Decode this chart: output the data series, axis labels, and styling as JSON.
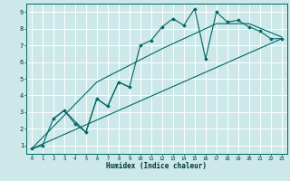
{
  "title": "",
  "xlabel": "Humidex (Indice chaleur)",
  "ylabel": "",
  "bg_color": "#cce8e8",
  "grid_color": "#ffffff",
  "line_color": "#006666",
  "marker_color": "#006666",
  "xlim": [
    -0.5,
    23.5
  ],
  "ylim": [
    0.5,
    9.5
  ],
  "xticks": [
    0,
    1,
    2,
    3,
    4,
    5,
    6,
    7,
    8,
    9,
    10,
    11,
    12,
    13,
    14,
    15,
    16,
    17,
    18,
    19,
    20,
    21,
    22,
    23
  ],
  "yticks": [
    1,
    2,
    3,
    4,
    5,
    6,
    7,
    8,
    9
  ],
  "main_line": [
    [
      0,
      0.8
    ],
    [
      1,
      1.0
    ],
    [
      2,
      2.6
    ],
    [
      3,
      3.1
    ],
    [
      4,
      2.3
    ],
    [
      5,
      1.8
    ],
    [
      6,
      3.8
    ],
    [
      7,
      3.35
    ],
    [
      8,
      4.8
    ],
    [
      9,
      4.5
    ],
    [
      10,
      7.0
    ],
    [
      11,
      7.3
    ],
    [
      12,
      8.1
    ],
    [
      13,
      8.6
    ],
    [
      14,
      8.2
    ],
    [
      15,
      9.2
    ],
    [
      16,
      6.2
    ],
    [
      17,
      9.0
    ],
    [
      18,
      8.4
    ],
    [
      19,
      8.5
    ],
    [
      20,
      8.1
    ],
    [
      21,
      7.85
    ],
    [
      22,
      7.4
    ],
    [
      23,
      7.4
    ]
  ],
  "line2": [
    [
      0,
      0.8
    ],
    [
      23,
      7.4
    ]
  ],
  "line3": [
    [
      2,
      2.6
    ],
    [
      3,
      3.1
    ],
    [
      5,
      1.8
    ],
    [
      6,
      3.8
    ],
    [
      7,
      3.35
    ],
    [
      8,
      4.8
    ],
    [
      9,
      4.5
    ]
  ],
  "line4": [
    [
      0,
      0.8
    ],
    [
      6,
      4.8
    ],
    [
      12,
      6.8
    ],
    [
      17,
      8.3
    ],
    [
      20,
      8.3
    ],
    [
      23,
      7.5
    ]
  ]
}
